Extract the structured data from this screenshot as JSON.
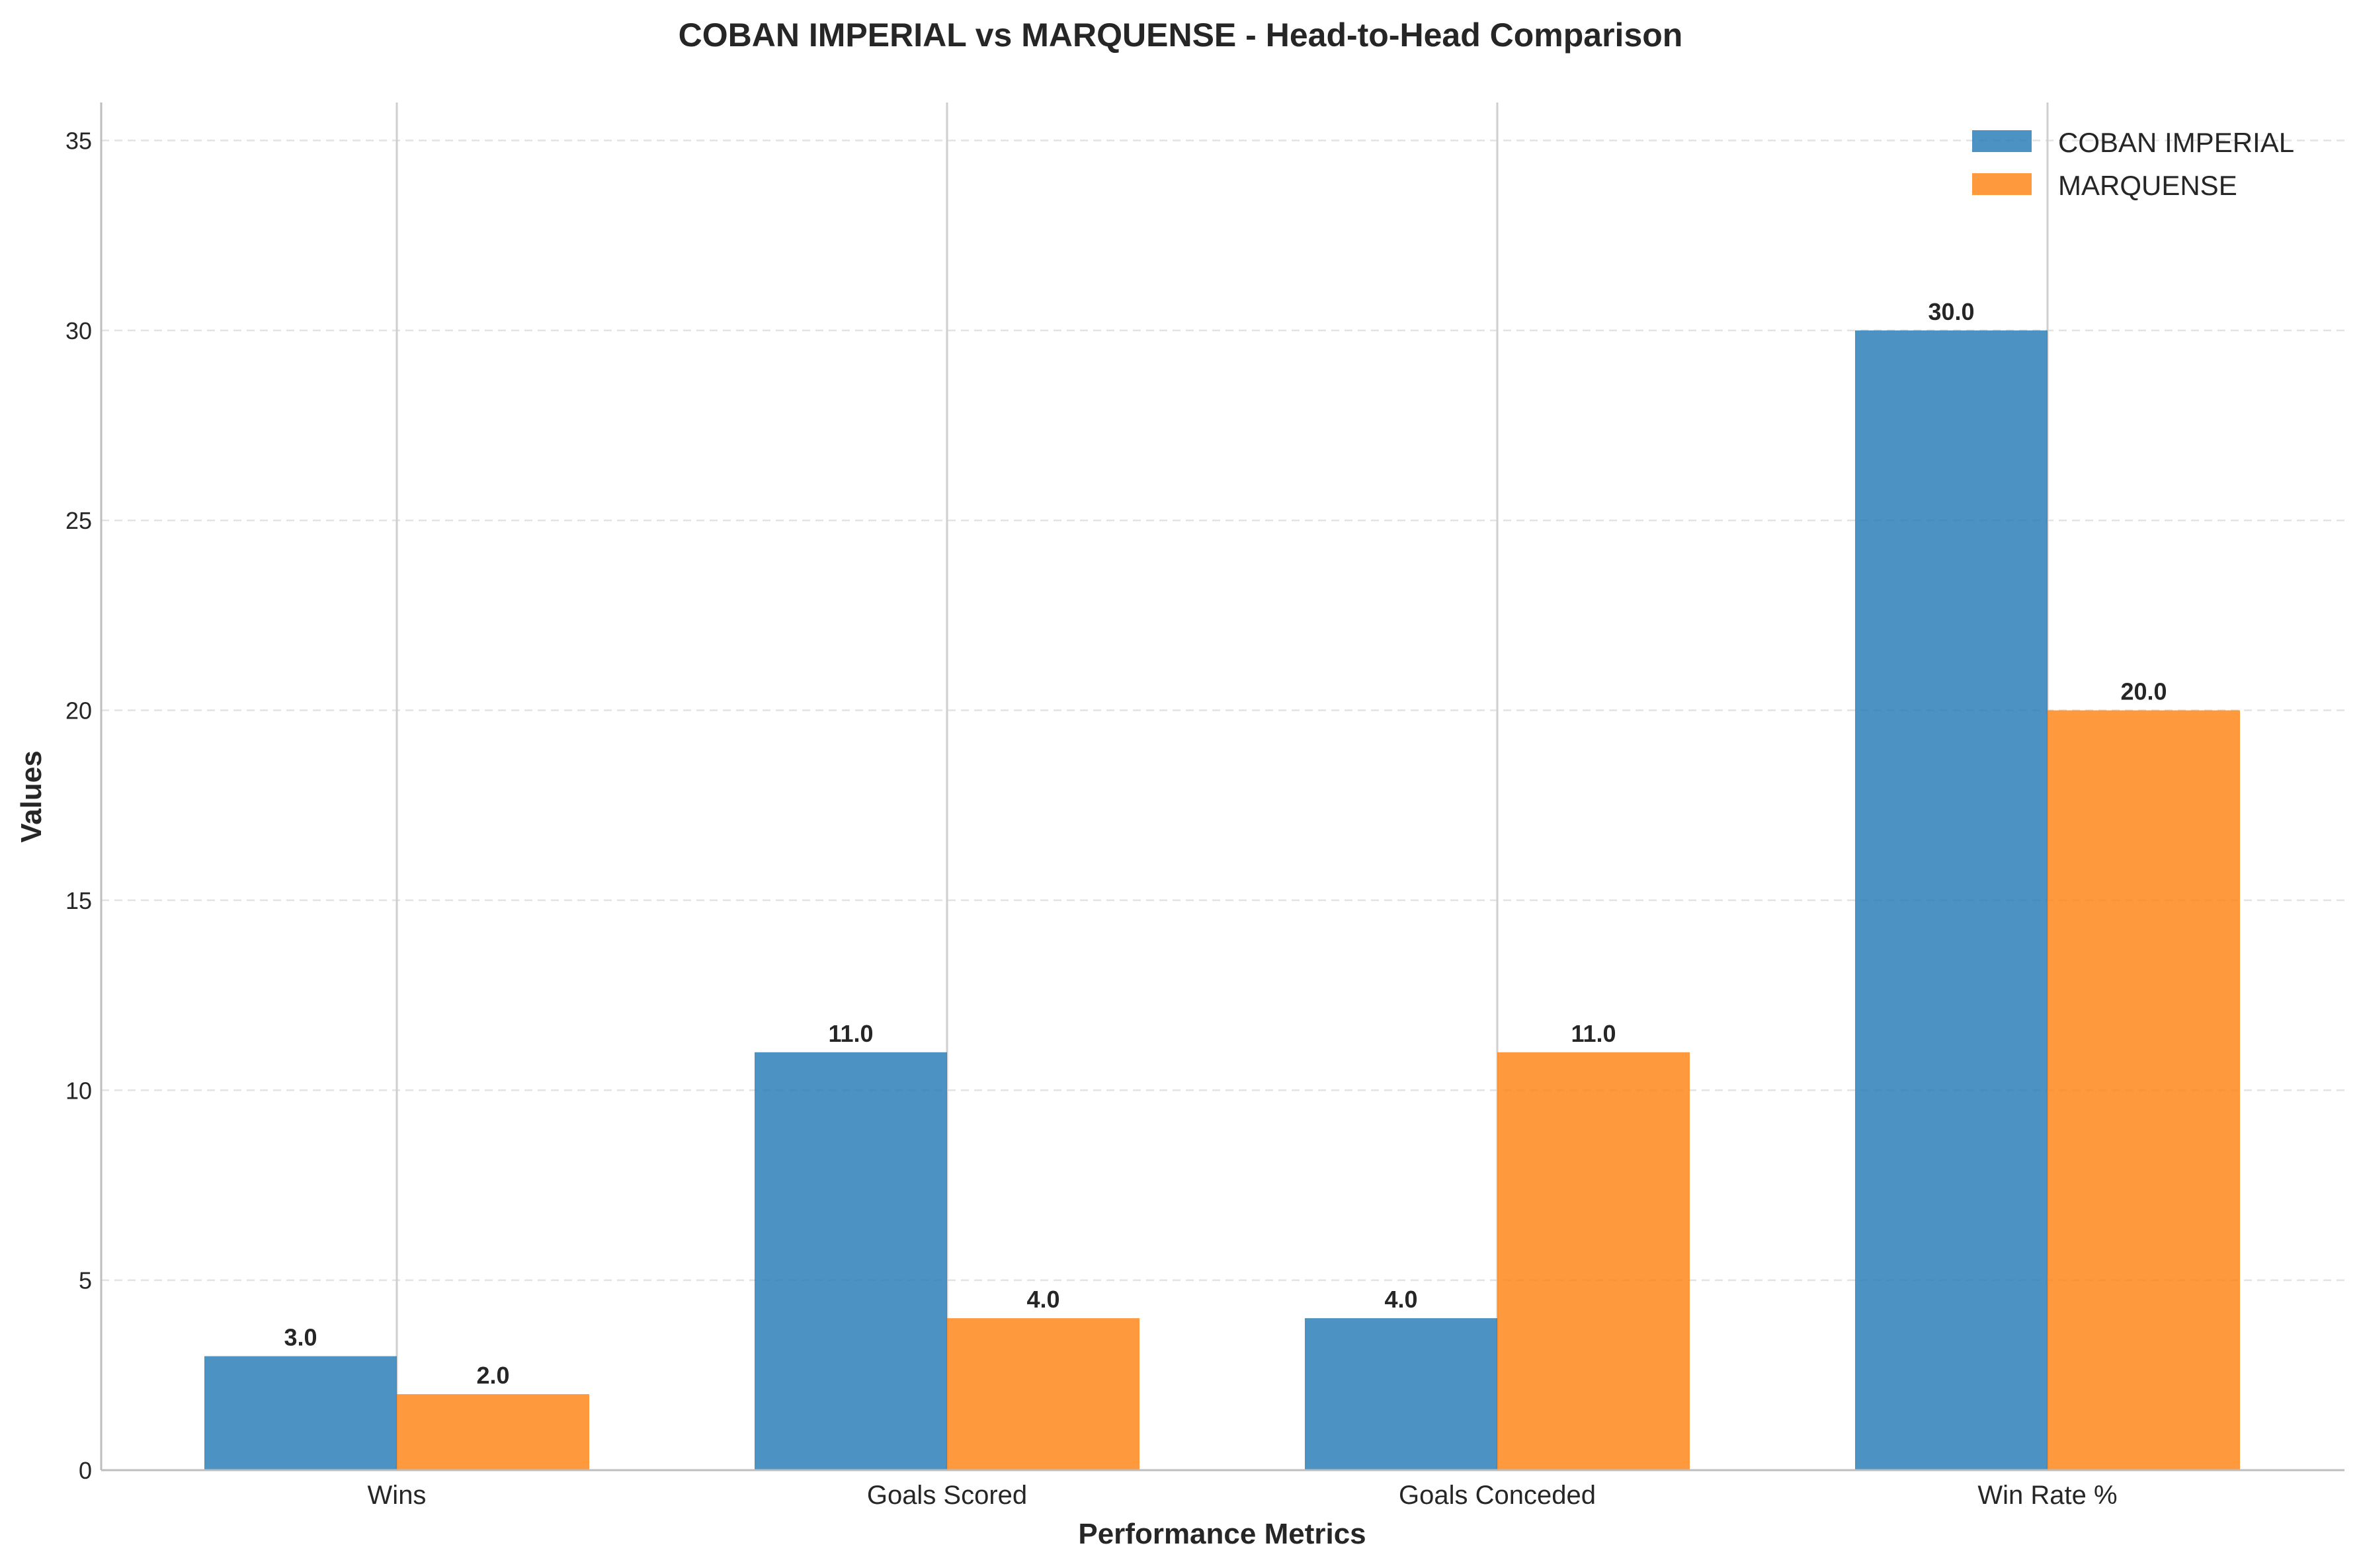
{
  "chart_data": {
    "type": "bar",
    "title": "COBAN IMPERIAL vs MARQUENSE - Head-to-Head Comparison",
    "xlabel": "Performance Metrics",
    "ylabel": "Values",
    "categories": [
      "Wins",
      "Goals Scored",
      "Goals Conceded",
      "Win Rate %"
    ],
    "series": [
      {
        "name": "COBAN IMPERIAL",
        "values": [
          3.0,
          11.0,
          4.0,
          30.0
        ],
        "color": "#1f77b4"
      },
      {
        "name": "MARQUENSE",
        "values": [
          2.0,
          4.0,
          11.0,
          20.0
        ],
        "color": "#ff7f0e"
      }
    ],
    "data_labels": [
      [
        "3.0",
        "11.0",
        "4.0",
        "30.0"
      ],
      [
        "2.0",
        "4.0",
        "11.0",
        "20.0"
      ]
    ],
    "ylim": [
      0,
      36
    ],
    "yticks": [
      0,
      5,
      10,
      15,
      20,
      25,
      30,
      35
    ],
    "grid": true,
    "legend_position": "top-right"
  }
}
